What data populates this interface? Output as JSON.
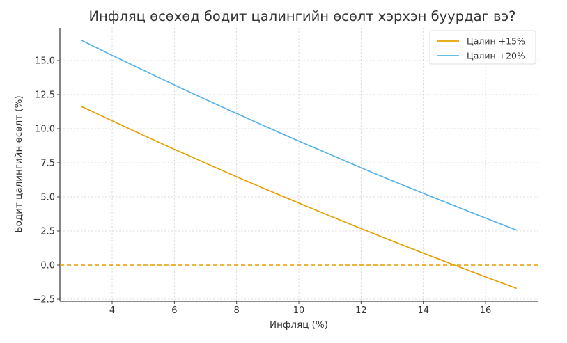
{
  "chart_data": {
    "type": "line",
    "title": "Инфляц өсөхөд бодит цалингийн өсөлт хэрхэн буурдаг вэ?",
    "xlabel": "Инфляц (%)",
    "ylabel": "Бодит цалингийн өсөлт (%)",
    "xlim": [
      2.6,
      17.7
    ],
    "ylim": [
      -2.6,
      17.5
    ],
    "xticks": [
      4,
      6,
      8,
      10,
      12,
      14,
      16
    ],
    "yticks": [
      -2.5,
      0.0,
      2.5,
      5.0,
      7.5,
      10.0,
      12.5,
      15.0
    ],
    "ytick_labels": [
      "−2.5",
      "0.0",
      "2.5",
      "5.0",
      "7.5",
      "10.0",
      "12.5",
      "15.0"
    ],
    "grid": true,
    "legend_position": "upper right",
    "x": [
      3,
      4,
      5,
      6,
      7,
      8,
      9,
      10,
      11,
      12,
      13,
      14,
      15,
      16,
      17
    ],
    "series": [
      {
        "name": "Цалин +15%",
        "color": "#E69F00",
        "values": [
          11.65,
          10.58,
          9.52,
          8.49,
          7.48,
          6.48,
          5.5,
          4.55,
          3.6,
          2.68,
          1.77,
          0.88,
          0.0,
          -0.86,
          -1.71
        ]
      },
      {
        "name": "Цалин +20%",
        "color": "#56B4E9",
        "values": [
          16.5,
          15.38,
          14.29,
          13.21,
          12.15,
          11.11,
          10.09,
          9.09,
          8.11,
          7.14,
          6.19,
          5.26,
          4.35,
          3.45,
          2.56
        ]
      }
    ],
    "annotations": [
      {
        "type": "hline",
        "y": 0,
        "style": "dashed",
        "color": "#E69F00"
      }
    ]
  }
}
